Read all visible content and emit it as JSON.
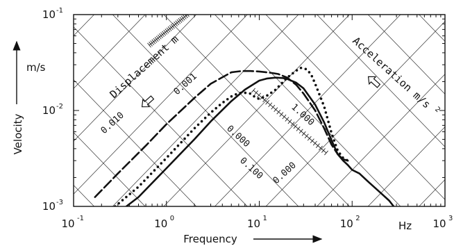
{
  "chart_data": {
    "type": "line",
    "title": "",
    "xlabel": "Frequency",
    "ylabel": "Velocity",
    "x_scale": "log",
    "y_scale": "log",
    "xlim": [
      0.1,
      1000
    ],
    "ylim": [
      0.001,
      0.1
    ],
    "x_ticks": [
      {
        "value": 0.1,
        "base": "10",
        "exp": "-1"
      },
      {
        "value": 1,
        "base": "10",
        "exp": "0"
      },
      {
        "value": 10,
        "base": "10",
        "exp": "1"
      },
      {
        "value": 100,
        "base": "10",
        "exp": "2"
      },
      {
        "value": 1000,
        "base": "10",
        "exp": "3"
      }
    ],
    "y_ticks": [
      {
        "value": 0.001,
        "base": "10",
        "exp": "-3"
      },
      {
        "value": 0.01,
        "base": "10",
        "exp": "-2"
      },
      {
        "value": 0.1,
        "base": "10",
        "exp": "-1"
      }
    ],
    "x_unit": "Hz",
    "y_unit": "m/s",
    "grid": true,
    "nomograph": {
      "displacement_label": "Displacement  m",
      "acceleration_label": "Acceleration  m/s",
      "acceleration_exp": "2",
      "displacement_line_labels": [
        "0.010",
        "0.001",
        "0.100",
        "0.000"
      ],
      "acceleration_line_labels": [
        "0.000",
        "1.000"
      ]
    },
    "series": [
      {
        "style": "dashed",
        "x": [
          0.17,
          0.3,
          0.6,
          1.0,
          2.0,
          3.0,
          5.0,
          6.5,
          8.0,
          10.0,
          13.0,
          16.0,
          20.0,
          25.0,
          30.0,
          40.0,
          50.0,
          60.0,
          70.0,
          80.0,
          90.0
        ],
        "y": [
          0.00125,
          0.0022,
          0.0043,
          0.0072,
          0.0135,
          0.019,
          0.025,
          0.0258,
          0.0258,
          0.0255,
          0.0248,
          0.024,
          0.022,
          0.0185,
          0.015,
          0.01,
          0.0065,
          0.0044,
          0.0035,
          0.0031,
          0.003
        ]
      },
      {
        "style": "dotted",
        "x": [
          0.28,
          0.5,
          1.0,
          2.0,
          3.0,
          4.0,
          5.0,
          6.0,
          7.0,
          8.0,
          9.0,
          10.0,
          12.0,
          15.0,
          20.0,
          25.0,
          28.0,
          32.0,
          36.0,
          40.0,
          50.0,
          60.0,
          70.0,
          80.0,
          90.0
        ],
        "y": [
          0.001,
          0.0016,
          0.0032,
          0.0065,
          0.0095,
          0.012,
          0.014,
          0.0152,
          0.0153,
          0.015,
          0.0138,
          0.0132,
          0.0142,
          0.0165,
          0.022,
          0.026,
          0.0278,
          0.027,
          0.024,
          0.019,
          0.011,
          0.0058,
          0.0038,
          0.0032,
          0.003
        ]
      },
      {
        "style": "solid",
        "x": [
          0.37,
          0.5,
          1.0,
          2.0,
          3.0,
          5.0,
          7.0,
          10.0,
          12.0,
          15.0,
          18.0,
          20.0,
          25.0,
          30.0,
          40.0,
          50.0,
          60.0,
          70.0,
          80.0,
          90.0,
          100.0,
          120.0,
          150.0,
          200.0,
          250.0,
          280.0
        ],
        "y": [
          0.001,
          0.00125,
          0.0025,
          0.005,
          0.0077,
          0.0125,
          0.0165,
          0.0205,
          0.0215,
          0.022,
          0.0218,
          0.0213,
          0.0195,
          0.017,
          0.0115,
          0.0075,
          0.0049,
          0.0035,
          0.003,
          0.0027,
          0.0024,
          0.0022,
          0.0018,
          0.0014,
          0.00115,
          0.001
        ]
      }
    ]
  }
}
